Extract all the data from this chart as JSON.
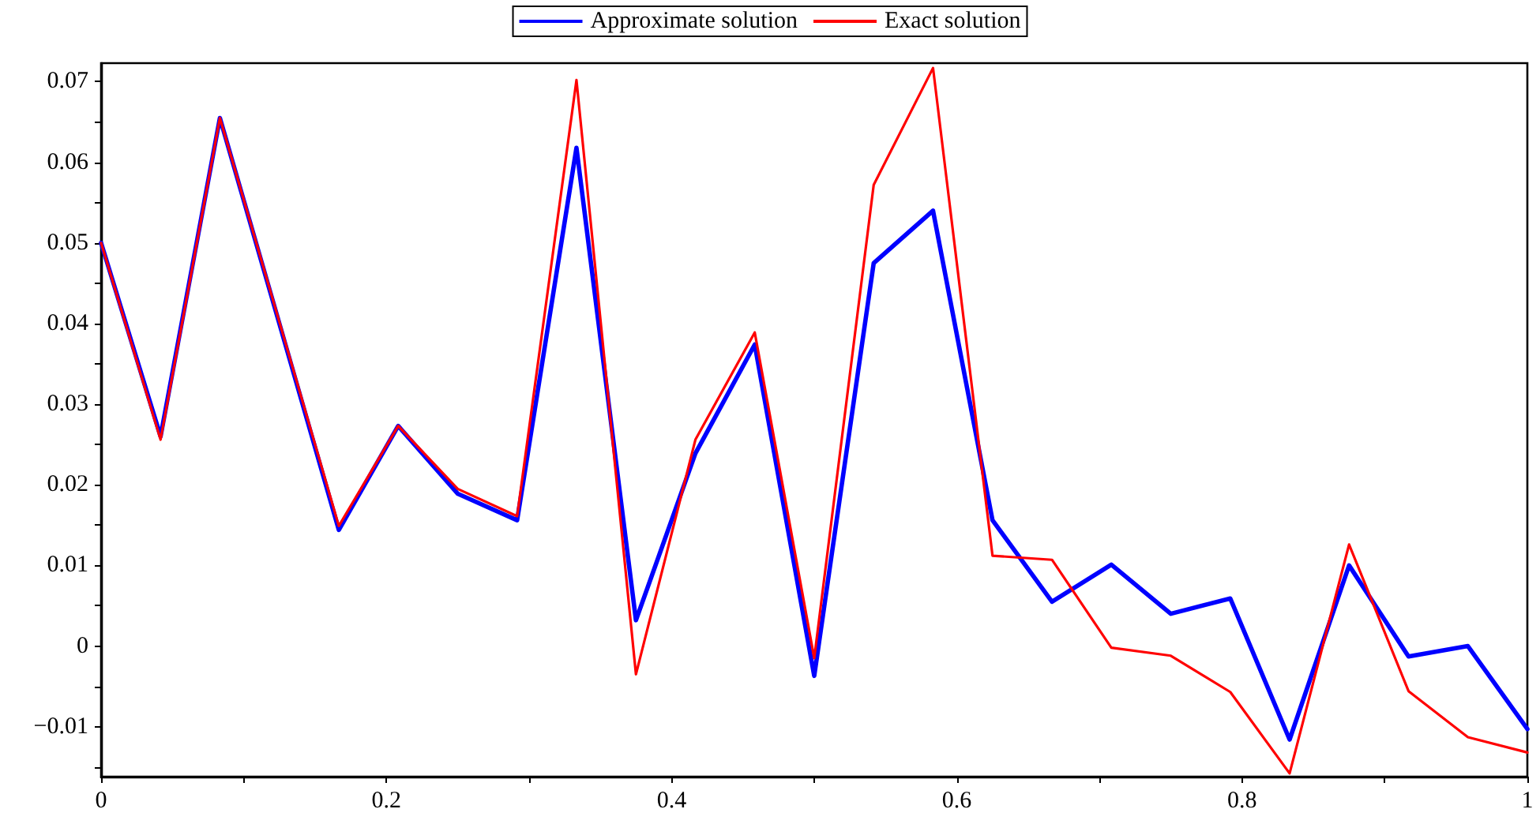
{
  "chart_data": {
    "type": "line",
    "x": [
      0,
      0.0417,
      0.0833,
      0.125,
      0.1667,
      0.2083,
      0.25,
      0.2917,
      0.3333,
      0.375,
      0.4167,
      0.4583,
      0.5,
      0.5417,
      0.5833,
      0.625,
      0.6667,
      0.7083,
      0.75,
      0.7917,
      0.8333,
      0.875,
      0.9167,
      0.9583,
      1
    ],
    "series": [
      {
        "name": "Approximate solution",
        "color": "#0000ff",
        "values": [
          0.05,
          0.026,
          0.0655,
          0.04,
          0.0144,
          0.0273,
          0.0189,
          0.0156,
          0.0618,
          0.0032,
          0.0239,
          0.0374,
          -0.0037,
          0.0475,
          0.054,
          0.0156,
          0.0055,
          0.0101,
          0.004,
          0.0059,
          -0.0116,
          0.01,
          -0.0013,
          0.0,
          -0.0103
        ]
      },
      {
        "name": "Exact solution",
        "color": "#ff0000",
        "values": [
          0.05,
          0.0256,
          0.0655,
          0.0402,
          0.0149,
          0.0273,
          0.0195,
          0.0161,
          0.0702,
          -0.0035,
          0.0256,
          0.0389,
          -0.0015,
          0.0572,
          0.0717,
          0.0112,
          0.0107,
          -0.0002,
          -0.0012,
          -0.0057,
          -0.0158,
          0.0126,
          -0.0056,
          -0.0113,
          -0.0132
        ]
      }
    ],
    "xlim": [
      0,
      1
    ],
    "xticks": [
      0,
      {
        "value": 0.1,
        "label": null
      },
      0.2,
      {
        "value": 0.3,
        "label": null
      },
      0.4,
      {
        "value": 0.5,
        "label": null
      },
      0.6,
      {
        "value": 0.7,
        "label": null
      },
      0.8,
      {
        "value": 0.9,
        "label": null
      },
      1
    ],
    "ylim": [
      -0.0162,
      0.0723
    ],
    "yticks": [
      {
        "value": -0.015,
        "label": null
      },
      {
        "value": -0.01,
        "label": "−0.01"
      },
      {
        "value": -0.005,
        "label": null
      },
      0,
      {
        "value": 0.005,
        "label": null
      },
      0.01,
      {
        "value": 0.015,
        "label": null
      },
      0.02,
      {
        "value": 0.025,
        "label": null
      },
      0.03,
      {
        "value": 0.035,
        "label": null
      },
      0.04,
      {
        "value": 0.045,
        "label": null
      },
      0.05,
      {
        "value": 0.055,
        "label": null
      },
      0.06,
      {
        "value": 0.065,
        "label": null
      },
      0.07
    ],
    "grid": false,
    "legend": "top",
    "marker": "none",
    "line_style": "solid"
  }
}
